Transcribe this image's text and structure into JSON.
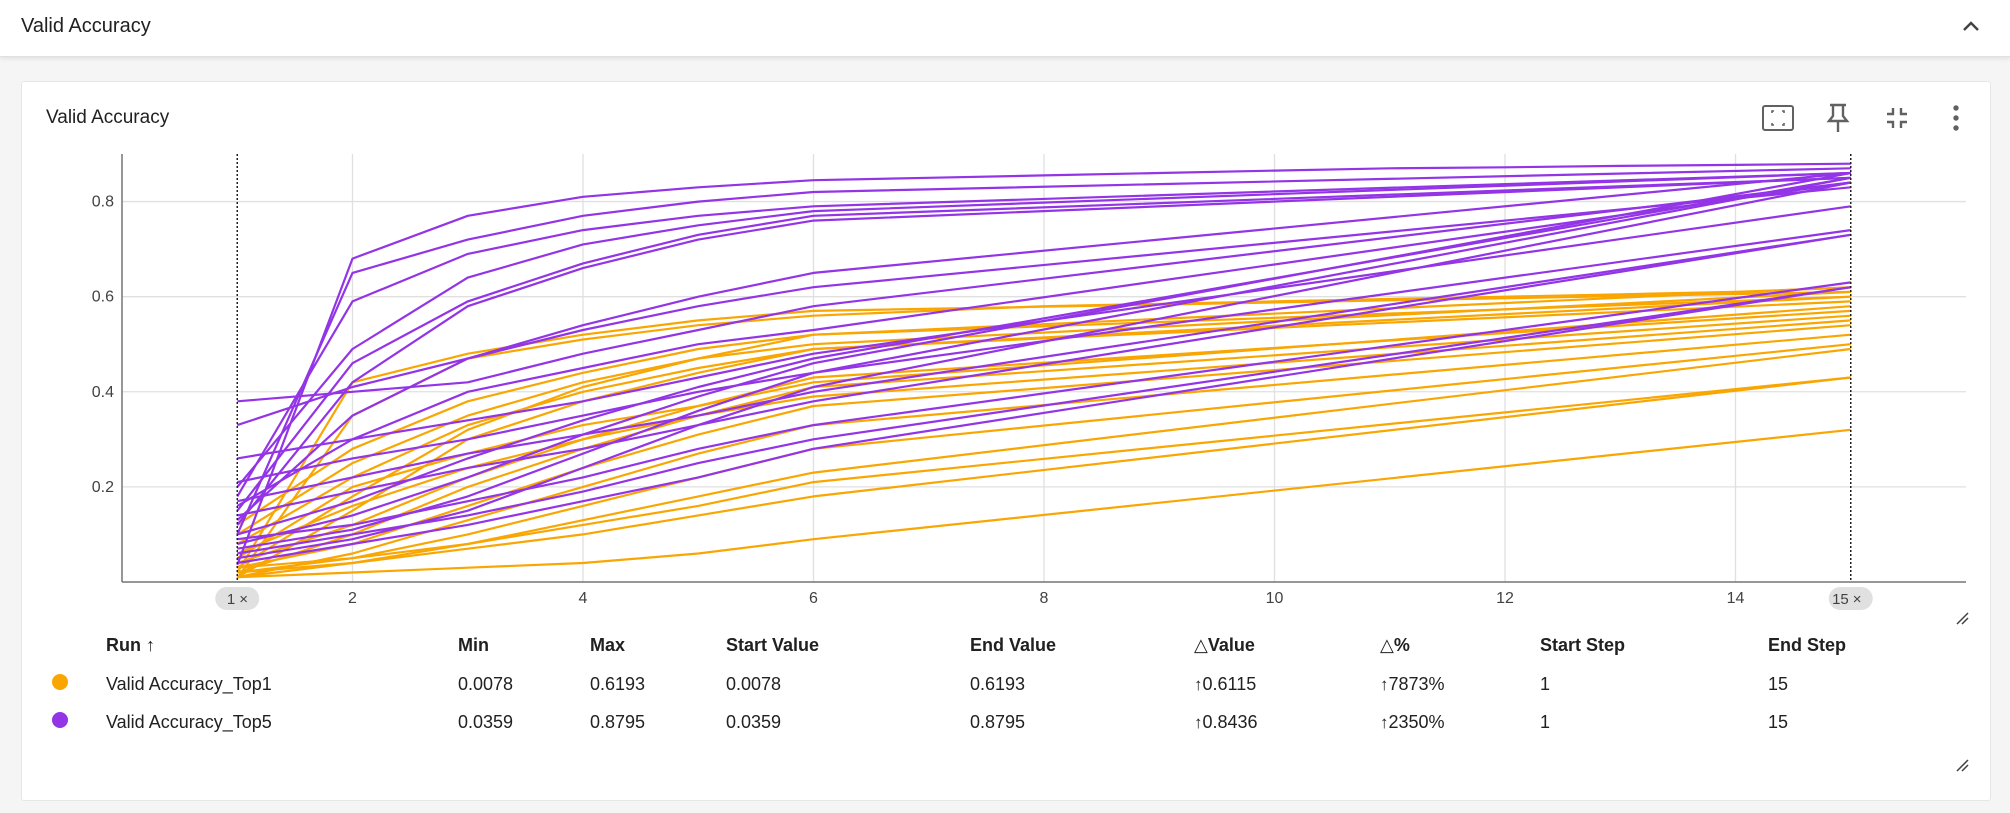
{
  "section": {
    "title": "Valid Accuracy"
  },
  "card": {
    "title": "Valid Accuracy",
    "tools": [
      "fit-domain-icon",
      "pin-icon",
      "collapse-icon",
      "more-vert-icon"
    ]
  },
  "colors": {
    "top1": "#f9a602",
    "top5": "#9334e6",
    "grid": "#e0e0e0",
    "axis": "#757575"
  },
  "chart_data": {
    "type": "line",
    "title": "Valid Accuracy",
    "x_ticks": [
      "2",
      "4",
      "6",
      "8",
      "10",
      "12",
      "14"
    ],
    "y_ticks": [
      "0.2",
      "0.4",
      "0.6",
      "0.8"
    ],
    "xlim": [
      0,
      16
    ],
    "ylim": [
      0,
      0.9
    ],
    "step_range_chips": [
      "1",
      "15"
    ],
    "chip_close": "×",
    "series": [
      {
        "name": "Valid Accuracy_Top1",
        "color": "#f9a602",
        "lines": [
          {
            "x": [
              1,
              2,
              3,
              4,
              5,
              6,
              7,
              8,
              9,
              10,
              11,
              12,
              13,
              14,
              15
            ],
            "y": [
              0.0078,
              0.35,
              0.47,
              0.51,
              0.54,
              0.56,
              0.57,
              0.58,
              0.585,
              0.59,
              0.595,
              0.6,
              0.605,
              0.61,
              0.6193
            ]
          },
          {
            "x": [
              1,
              2,
              3,
              4,
              5,
              6,
              15
            ],
            "y": [
              0.02,
              0.42,
              0.48,
              0.52,
              0.55,
              0.57,
              0.61
            ]
          },
          {
            "x": [
              1,
              2,
              3,
              4,
              5,
              6,
              15
            ],
            "y": [
              0.03,
              0.18,
              0.32,
              0.41,
              0.47,
              0.52,
              0.6
            ]
          },
          {
            "x": [
              1,
              2,
              3,
              4,
              5,
              6,
              15
            ],
            "y": [
              0.01,
              0.15,
              0.3,
              0.38,
              0.44,
              0.49,
              0.59
            ]
          },
          {
            "x": [
              1,
              2,
              3,
              4,
              5,
              6,
              15
            ],
            "y": [
              0.05,
              0.2,
              0.27,
              0.33,
              0.37,
              0.42,
              0.58
            ]
          },
          {
            "x": [
              1,
              2,
              3,
              4,
              5,
              6,
              15
            ],
            "y": [
              0.04,
              0.12,
              0.22,
              0.3,
              0.37,
              0.43,
              0.57
            ]
          },
          {
            "x": [
              1,
              2,
              3,
              4,
              5,
              6,
              15
            ],
            "y": [
              0.02,
              0.1,
              0.2,
              0.28,
              0.35,
              0.41,
              0.56
            ]
          },
          {
            "x": [
              1,
              2,
              3,
              4,
              5,
              6,
              15
            ],
            "y": [
              0.06,
              0.16,
              0.24,
              0.3,
              0.35,
              0.39,
              0.55
            ]
          },
          {
            "x": [
              1,
              2,
              3,
              4,
              5,
              6,
              15
            ],
            "y": [
              0.03,
              0.08,
              0.16,
              0.24,
              0.31,
              0.37,
              0.54
            ]
          },
          {
            "x": [
              1,
              2,
              3,
              4,
              5,
              6,
              15
            ],
            "y": [
              0.01,
              0.06,
              0.13,
              0.2,
              0.27,
              0.33,
              0.52
            ]
          },
          {
            "x": [
              1,
              2,
              3,
              4,
              5,
              6,
              15
            ],
            "y": [
              0.02,
              0.05,
              0.1,
              0.16,
              0.22,
              0.28,
              0.5
            ]
          },
          {
            "x": [
              1,
              2,
              3,
              4,
              5,
              6,
              15
            ],
            "y": [
              0.01,
              0.04,
              0.08,
              0.13,
              0.18,
              0.23,
              0.49
            ]
          },
          {
            "x": [
              1,
              2,
              3,
              4,
              5,
              6,
              15
            ],
            "y": [
              0.03,
              0.05,
              0.08,
              0.12,
              0.16,
              0.21,
              0.43
            ]
          },
          {
            "x": [
              1,
              2,
              3,
              4,
              5,
              6,
              15
            ],
            "y": [
              0.02,
              0.04,
              0.07,
              0.1,
              0.14,
              0.18,
              0.43
            ]
          },
          {
            "x": [
              1,
              2,
              3,
              4,
              5,
              6,
              15
            ],
            "y": [
              0.01,
              0.02,
              0.03,
              0.04,
              0.06,
              0.09,
              0.32
            ]
          },
          {
            "x": [
              1,
              2,
              3,
              4,
              5,
              6,
              15
            ],
            "y": [
              0.08,
              0.22,
              0.33,
              0.4,
              0.45,
              0.49,
              0.6
            ]
          },
          {
            "x": [
              1,
              2,
              3,
              4,
              5,
              6,
              15
            ],
            "y": [
              0.1,
              0.25,
              0.35,
              0.42,
              0.47,
              0.5,
              0.61
            ]
          },
          {
            "x": [
              1,
              2,
              3,
              4,
              5,
              6,
              15
            ],
            "y": [
              0.12,
              0.28,
              0.38,
              0.44,
              0.49,
              0.52,
              0.62
            ]
          }
        ]
      },
      {
        "name": "Valid Accuracy_Top5",
        "color": "#9334e6",
        "lines": [
          {
            "x": [
              1,
              2,
              3,
              4,
              5,
              6,
              7,
              8,
              9,
              10,
              11,
              12,
              13,
              14,
              15
            ],
            "y": [
              0.0359,
              0.68,
              0.77,
              0.81,
              0.83,
              0.845,
              0.85,
              0.855,
              0.86,
              0.865,
              0.87,
              0.872,
              0.875,
              0.877,
              0.8795
            ]
          },
          {
            "x": [
              1,
              2,
              3,
              4,
              5,
              6,
              15
            ],
            "y": [
              0.1,
              0.65,
              0.72,
              0.77,
              0.8,
              0.82,
              0.87
            ]
          },
          {
            "x": [
              1,
              2,
              3,
              4,
              5,
              6,
              15
            ],
            "y": [
              0.18,
              0.59,
              0.69,
              0.74,
              0.77,
              0.79,
              0.86
            ]
          },
          {
            "x": [
              1,
              2,
              3,
              4,
              5,
              6,
              15
            ],
            "y": [
              0.2,
              0.49,
              0.64,
              0.71,
              0.75,
              0.78,
              0.86
            ]
          },
          {
            "x": [
              1,
              2,
              3,
              4,
              5,
              6,
              15
            ],
            "y": [
              0.15,
              0.46,
              0.59,
              0.67,
              0.73,
              0.77,
              0.85
            ]
          },
          {
            "x": [
              1,
              2,
              3,
              4,
              5,
              6,
              15
            ],
            "y": [
              0.12,
              0.42,
              0.58,
              0.66,
              0.72,
              0.76,
              0.85
            ]
          },
          {
            "x": [
              1,
              2,
              3,
              4,
              5,
              6,
              15
            ],
            "y": [
              0.38,
              0.4,
              0.42,
              0.48,
              0.53,
              0.58,
              0.84
            ]
          },
          {
            "x": [
              1,
              2,
              3,
              4,
              5,
              6,
              15
            ],
            "y": [
              0.33,
              0.41,
              0.47,
              0.53,
              0.58,
              0.62,
              0.83
            ]
          },
          {
            "x": [
              1,
              2,
              3,
              4,
              5,
              6,
              15
            ],
            "y": [
              0.26,
              0.3,
              0.34,
              0.38,
              0.43,
              0.48,
              0.79
            ]
          },
          {
            "x": [
              1,
              2,
              3,
              4,
              5,
              6,
              15
            ],
            "y": [
              0.21,
              0.26,
              0.3,
              0.35,
              0.4,
              0.44,
              0.74
            ]
          },
          {
            "x": [
              1,
              2,
              3,
              4,
              5,
              6,
              15
            ],
            "y": [
              0.17,
              0.22,
              0.27,
              0.31,
              0.35,
              0.4,
              0.73
            ]
          },
          {
            "x": [
              1,
              2,
              3,
              4,
              5,
              6,
              15
            ],
            "y": [
              0.14,
              0.19,
              0.24,
              0.28,
              0.33,
              0.38,
              0.73
            ]
          },
          {
            "x": [
              1,
              2,
              3,
              4,
              5,
              6,
              15
            ],
            "y": [
              0.09,
              0.12,
              0.17,
              0.22,
              0.28,
              0.33,
              0.63
            ]
          },
          {
            "x": [
              1,
              2,
              3,
              4,
              5,
              6,
              15
            ],
            "y": [
              0.06,
              0.1,
              0.14,
              0.19,
              0.25,
              0.3,
              0.62
            ]
          },
          {
            "x": [
              1,
              2,
              3,
              4,
              5,
              6,
              15
            ],
            "y": [
              0.04,
              0.08,
              0.12,
              0.17,
              0.22,
              0.28,
              0.62
            ]
          },
          {
            "x": [
              1,
              2,
              3,
              4,
              5,
              6,
              15
            ],
            "y": [
              0.05,
              0.09,
              0.15,
              0.24,
              0.33,
              0.41,
              0.84
            ]
          },
          {
            "x": [
              1,
              2,
              3,
              4,
              5,
              6,
              15
            ],
            "y": [
              0.07,
              0.11,
              0.18,
              0.27,
              0.36,
              0.44,
              0.85
            ]
          },
          {
            "x": [
              1,
              2,
              3,
              4,
              5,
              6,
              15
            ],
            "y": [
              0.08,
              0.14,
              0.22,
              0.31,
              0.39,
              0.46,
              0.86
            ]
          },
          {
            "x": [
              1,
              2,
              3,
              4,
              5,
              6,
              15
            ],
            "y": [
              0.1,
              0.17,
              0.26,
              0.34,
              0.41,
              0.47,
              0.85
            ]
          },
          {
            "x": [
              1,
              2,
              3,
              4,
              5,
              6,
              15
            ],
            "y": [
              0.16,
              0.3,
              0.4,
              0.45,
              0.5,
              0.53,
              0.84
            ]
          },
          {
            "x": [
              1,
              2,
              3,
              4,
              5,
              6,
              15
            ],
            "y": [
              0.13,
              0.35,
              0.47,
              0.54,
              0.6,
              0.65,
              0.86
            ]
          }
        ]
      }
    ]
  },
  "table": {
    "headers": {
      "run": "Run",
      "run_sort": "↑",
      "min": "Min",
      "max": "Max",
      "start_value": "Start Value",
      "end_value": "End Value",
      "delta_value": "Value",
      "delta_pct": "%",
      "delta_symbol": "△",
      "start_step": "Start Step",
      "end_step": "End Step"
    },
    "rows": [
      {
        "color": "#f9a602",
        "run": "Valid Accuracy_Top1",
        "min": "0.0078",
        "max": "0.6193",
        "start_value": "0.0078",
        "end_value": "0.6193",
        "delta_value": "0.6115",
        "delta_pct": "7873%",
        "start_step": "1",
        "end_step": "15"
      },
      {
        "color": "#9334e6",
        "run": "Valid Accuracy_Top5",
        "min": "0.0359",
        "max": "0.8795",
        "start_value": "0.0359",
        "end_value": "0.8795",
        "delta_value": "0.8436",
        "delta_pct": "2350%",
        "start_step": "1",
        "end_step": "15"
      }
    ],
    "up_arrow": "↑"
  }
}
